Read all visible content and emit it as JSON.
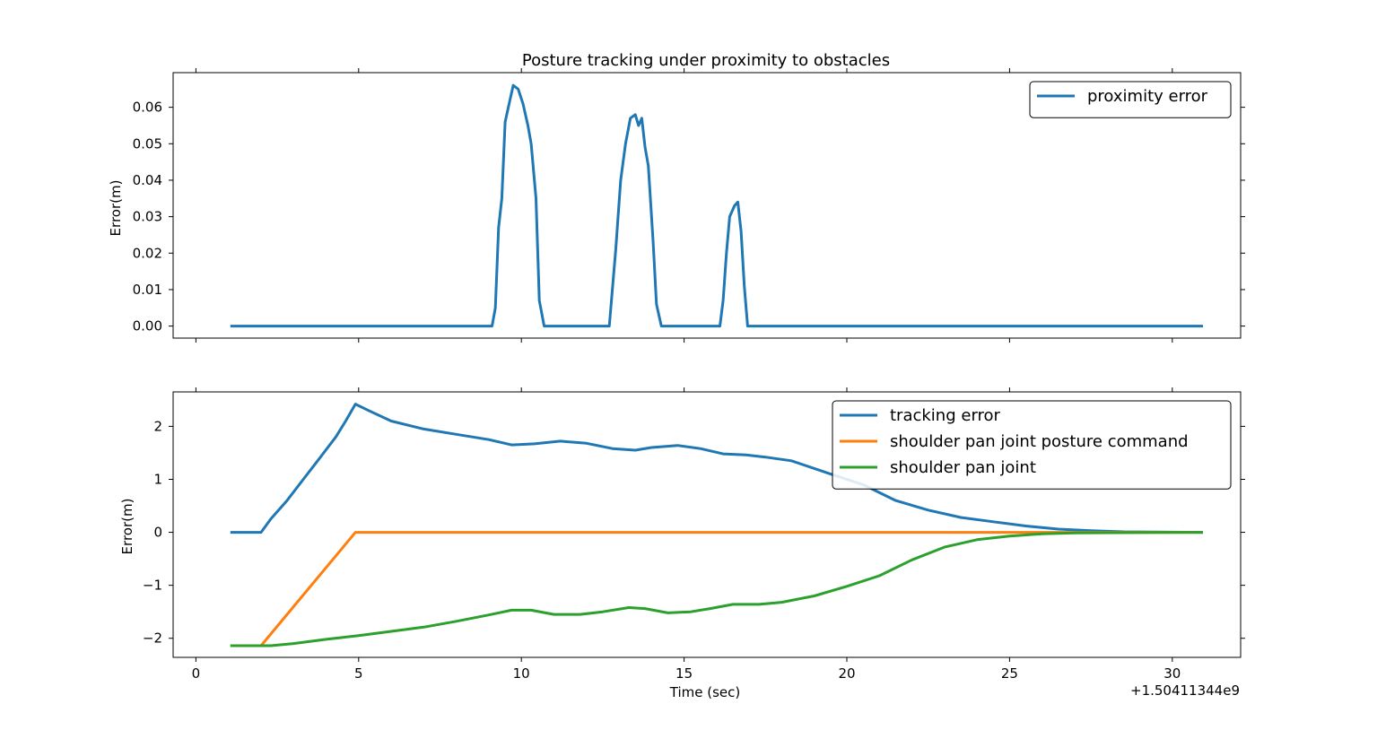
{
  "chart_data": [
    {
      "type": "line",
      "title": "Posture tracking under proximity to obstacles",
      "xlabel": "",
      "ylabel": "Error(m)",
      "xlim": [
        -0.7,
        32.1
      ],
      "ylim": [
        -0.0033,
        0.0695
      ],
      "x_ticks": [
        0,
        5,
        10,
        15,
        20,
        25,
        30
      ],
      "y_ticks": [
        0.0,
        0.01,
        0.02,
        0.03,
        0.04,
        0.05,
        0.06
      ],
      "y_tick_labels": [
        "0.00",
        "0.01",
        "0.02",
        "0.03",
        "0.04",
        "0.05",
        "0.06"
      ],
      "grid": false,
      "legend": "top-right",
      "series": [
        {
          "name": "proximity error",
          "color": "#1f77b4",
          "points": [
            [
              1.1,
              0.0
            ],
            [
              9.1,
              0.0
            ],
            [
              9.2,
              0.005
            ],
            [
              9.3,
              0.027
            ],
            [
              9.4,
              0.035
            ],
            [
              9.5,
              0.056
            ],
            [
              9.6,
              0.06
            ],
            [
              9.75,
              0.066
            ],
            [
              9.9,
              0.065
            ],
            [
              10.05,
              0.061
            ],
            [
              10.2,
              0.055
            ],
            [
              10.3,
              0.05
            ],
            [
              10.45,
              0.035
            ],
            [
              10.55,
              0.007
            ],
            [
              10.7,
              0.0
            ],
            [
              12.7,
              0.0
            ],
            [
              12.9,
              0.021
            ],
            [
              13.05,
              0.04
            ],
            [
              13.2,
              0.05
            ],
            [
              13.35,
              0.057
            ],
            [
              13.5,
              0.058
            ],
            [
              13.6,
              0.055
            ],
            [
              13.7,
              0.057
            ],
            [
              13.8,
              0.049
            ],
            [
              13.9,
              0.044
            ],
            [
              14.05,
              0.023
            ],
            [
              14.15,
              0.006
            ],
            [
              14.3,
              0.0
            ],
            [
              16.1,
              0.0
            ],
            [
              16.2,
              0.007
            ],
            [
              16.3,
              0.02
            ],
            [
              16.4,
              0.03
            ],
            [
              16.55,
              0.033
            ],
            [
              16.65,
              0.034
            ],
            [
              16.75,
              0.026
            ],
            [
              16.85,
              0.011
            ],
            [
              16.95,
              0.0
            ],
            [
              30.9,
              0.0
            ]
          ]
        }
      ]
    },
    {
      "type": "line",
      "title": "",
      "xlabel": "Time (sec)",
      "ylabel": "Error(m)",
      "offset_label": "+1.50411344e9",
      "xlim": [
        -0.7,
        32.1
      ],
      "ylim": [
        -2.36,
        2.65
      ],
      "x_ticks": [
        0,
        5,
        10,
        15,
        20,
        25,
        30
      ],
      "y_ticks": [
        2,
        1,
        0,
        -1,
        -2
      ],
      "y_tick_labels": [
        "2",
        "1",
        "0",
        "−1",
        "−2"
      ],
      "grid": false,
      "legend": "top-right",
      "series": [
        {
          "name": "tracking error",
          "color": "#1f77b4",
          "points": [
            [
              1.1,
              0.0
            ],
            [
              2.0,
              0.0
            ],
            [
              2.3,
              0.25
            ],
            [
              2.8,
              0.6
            ],
            [
              3.3,
              1.0
            ],
            [
              3.8,
              1.4
            ],
            [
              4.3,
              1.8
            ],
            [
              4.6,
              2.1
            ],
            [
              4.9,
              2.42
            ],
            [
              5.3,
              2.3
            ],
            [
              6.0,
              2.1
            ],
            [
              7.0,
              1.95
            ],
            [
              8.0,
              1.85
            ],
            [
              9.0,
              1.75
            ],
            [
              9.7,
              1.65
            ],
            [
              10.4,
              1.67
            ],
            [
              11.2,
              1.72
            ],
            [
              12.0,
              1.68
            ],
            [
              12.8,
              1.58
            ],
            [
              13.5,
              1.55
            ],
            [
              14.0,
              1.6
            ],
            [
              14.8,
              1.64
            ],
            [
              15.5,
              1.58
            ],
            [
              16.2,
              1.48
            ],
            [
              16.9,
              1.46
            ],
            [
              17.5,
              1.42
            ],
            [
              18.3,
              1.35
            ],
            [
              19.5,
              1.1
            ],
            [
              20.5,
              0.9
            ],
            [
              21.5,
              0.6
            ],
            [
              22.5,
              0.42
            ],
            [
              23.5,
              0.28
            ],
            [
              24.5,
              0.2
            ],
            [
              25.5,
              0.12
            ],
            [
              26.5,
              0.06
            ],
            [
              27.5,
              0.03
            ],
            [
              28.5,
              0.01
            ],
            [
              30.9,
              0.0
            ]
          ]
        },
        {
          "name": "shoulder pan joint posture command",
          "color": "#ff7f0e",
          "points": [
            [
              1.1,
              -2.14
            ],
            [
              2.0,
              -2.14
            ],
            [
              4.9,
              0.0
            ],
            [
              30.9,
              0.0
            ]
          ]
        },
        {
          "name": "shoulder pan joint",
          "color": "#2ca02c",
          "points": [
            [
              1.1,
              -2.14
            ],
            [
              2.3,
              -2.14
            ],
            [
              3.0,
              -2.1
            ],
            [
              4.0,
              -2.02
            ],
            [
              5.0,
              -1.95
            ],
            [
              6.0,
              -1.87
            ],
            [
              7.0,
              -1.79
            ],
            [
              8.0,
              -1.68
            ],
            [
              9.0,
              -1.56
            ],
            [
              9.7,
              -1.47
            ],
            [
              10.3,
              -1.47
            ],
            [
              11.0,
              -1.55
            ],
            [
              11.8,
              -1.55
            ],
            [
              12.5,
              -1.5
            ],
            [
              13.3,
              -1.42
            ],
            [
              13.8,
              -1.44
            ],
            [
              14.5,
              -1.52
            ],
            [
              15.2,
              -1.5
            ],
            [
              15.8,
              -1.44
            ],
            [
              16.5,
              -1.36
            ],
            [
              17.3,
              -1.36
            ],
            [
              18.0,
              -1.32
            ],
            [
              19.0,
              -1.2
            ],
            [
              20.0,
              -1.02
            ],
            [
              21.0,
              -0.82
            ],
            [
              22.0,
              -0.52
            ],
            [
              23.0,
              -0.28
            ],
            [
              24.0,
              -0.14
            ],
            [
              25.0,
              -0.07
            ],
            [
              26.0,
              -0.03
            ],
            [
              27.0,
              -0.01
            ],
            [
              30.9,
              0.0
            ]
          ]
        }
      ]
    }
  ]
}
